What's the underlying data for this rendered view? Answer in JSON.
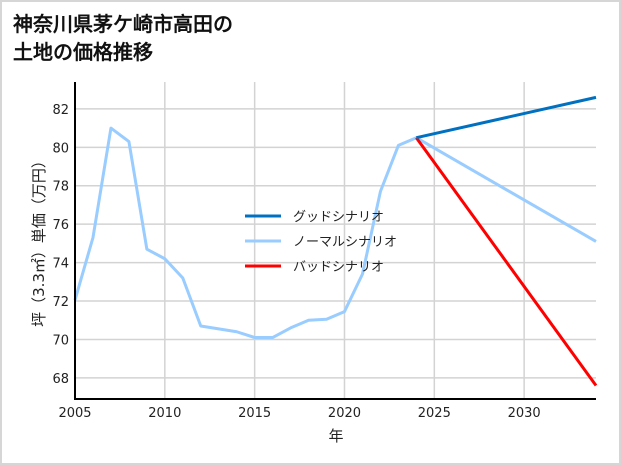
{
  "chart_data": {
    "type": "line",
    "title": "神奈川県茅ケ崎市高田の\n土地の価格推移",
    "xlabel": "年",
    "ylabel": "坪（3.3㎡）単価（万円）",
    "xlim": [
      2005,
      2034
    ],
    "ylim": [
      66.9,
      83.4
    ],
    "xticks": [
      2005,
      2010,
      2015,
      2020,
      2025,
      2030
    ],
    "yticks": [
      68,
      70,
      72,
      74,
      76,
      78,
      80,
      82
    ],
    "grid": true,
    "legend_position": "center",
    "series": [
      {
        "name": "グッドシナリオ",
        "color": "#0070c0",
        "x": [
          2024,
          2034
        ],
        "y": [
          80.5,
          82.6
        ]
      },
      {
        "name": "ノーマルシナリオ",
        "color": "#99ccff",
        "x": [
          2005,
          2006,
          2007,
          2008,
          2009,
          2010,
          2011,
          2012,
          2013,
          2014,
          2015,
          2016,
          2017,
          2018,
          2019,
          2020,
          2021,
          2022,
          2023,
          2024,
          2034
        ],
        "y": [
          72.05,
          75.3,
          81.0,
          80.3,
          74.7,
          74.2,
          73.2,
          70.7,
          70.55,
          70.4,
          70.1,
          70.1,
          70.6,
          71.0,
          71.05,
          71.45,
          73.4,
          77.7,
          80.1,
          80.5,
          75.1
        ]
      },
      {
        "name": "バッドシナリオ",
        "color": "#ff0000",
        "x": [
          2024,
          2034
        ],
        "y": [
          80.5,
          67.6
        ]
      }
    ]
  }
}
